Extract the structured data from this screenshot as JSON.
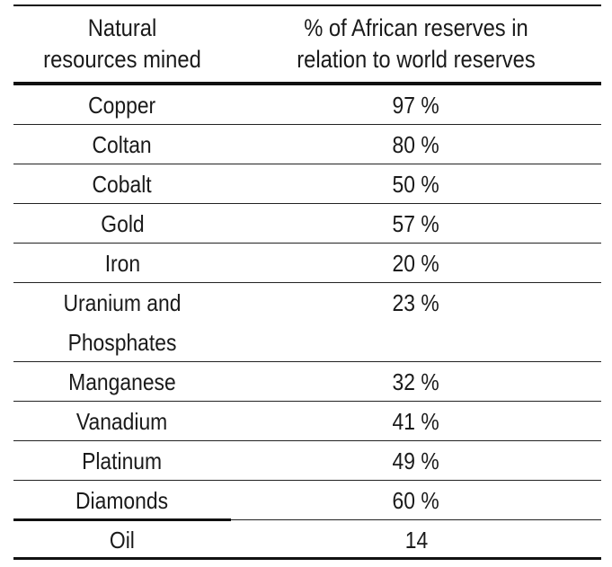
{
  "table": {
    "headers": [
      "Natural\nresources mined",
      "% of African reserves in\nrelation to world reserves"
    ],
    "rows": [
      {
        "resource": "Copper",
        "percent": "97 %"
      },
      {
        "resource": "Coltan",
        "percent": "80 %"
      },
      {
        "resource": "Cobalt",
        "percent": "50 %"
      },
      {
        "resource": "Gold",
        "percent": "57 %"
      },
      {
        "resource": "Iron",
        "percent": "20 %"
      },
      {
        "resource": "Uranium and Phosphates",
        "percent": "23 %"
      },
      {
        "resource": "Manganese",
        "percent": "32 %"
      },
      {
        "resource": "Vanadium",
        "percent": "41 %"
      },
      {
        "resource": "Platinum",
        "percent": "49 %"
      },
      {
        "resource": "Diamonds",
        "percent": "60 %"
      },
      {
        "resource": "Oil",
        "percent": "14"
      }
    ]
  }
}
